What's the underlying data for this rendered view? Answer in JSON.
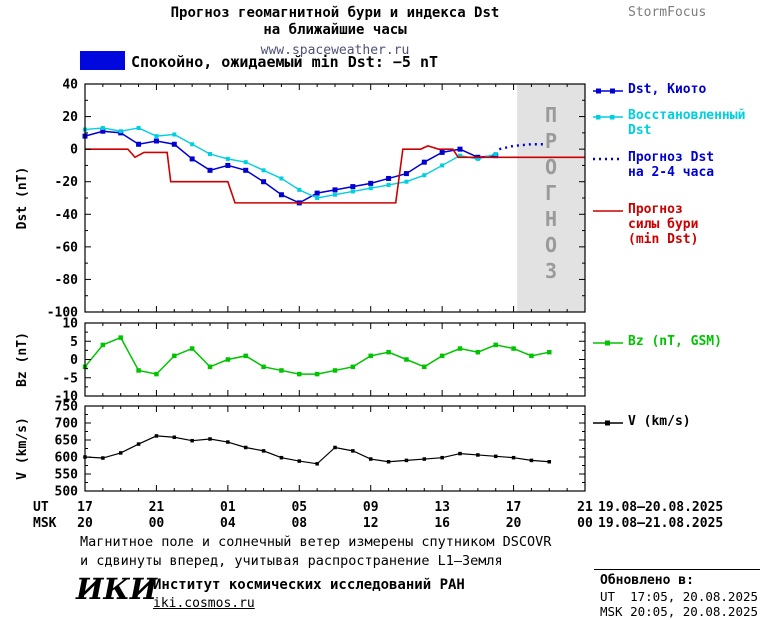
{
  "header": {
    "title_line1": "Прогноз геомагнитной бури и индекса Dst",
    "title_line2": "на ближайшие часы",
    "site": "www.spaceweather.ru",
    "brand": "StormFocus"
  },
  "status": {
    "label": "Спокойно, ожидаемый min Dst: −5 nT",
    "swatch_color": "#0008dd"
  },
  "axis": {
    "ut_label": "UT",
    "msk_label": "MSK",
    "tick_positions": [
      0,
      4,
      8,
      12,
      16,
      20,
      24,
      28
    ],
    "ut_ticks": [
      "17",
      "21",
      "01",
      "05",
      "09",
      "13",
      "17",
      "21"
    ],
    "msk_ticks": [
      "20",
      "00",
      "04",
      "08",
      "12",
      "16",
      "20",
      "00"
    ],
    "ut_range": "19.08–20.08.2025",
    "msk_range": "19.08–21.08.2025"
  },
  "legends": {
    "dst_kyoto": {
      "label": "Dst, Киото"
    },
    "dst_restored": {
      "line1": "Восстановленный",
      "line2": "Dst"
    },
    "dst_forecast": {
      "line1": "Прогноз Dst",
      "line2": "на 2-4 часа"
    },
    "storm_forecast": {
      "line1": "Прогноз",
      "line2": "силы бури",
      "line3": "(min Dst)"
    },
    "bz": {
      "label": "Bz (nT, GSM)"
    },
    "v": {
      "label": "V (km/s)"
    }
  },
  "footer": {
    "note_line1": "Магнитное поле и солнечный ветер измерены спутником DSCOVR",
    "note_line2": "и сдвинуты вперед, учитывая распространение L1—Земля",
    "logo": "ИКИ",
    "institute": "Институт космических исследований РАН",
    "site": "iki.cosmos.ru",
    "updated_label": "Обновлено в:",
    "updated_ut": "UT  17:05, 20.08.2025",
    "updated_msk": "MSK 20:05, 20.08.2025"
  },
  "chart_data": [
    {
      "type": "line",
      "panel": "dst",
      "ylabel": "Dst (nT)",
      "x_unit": "hours since 17:00 UT 19.08.2025",
      "xlim": [
        0,
        28
      ],
      "ylim": [
        -100,
        40
      ],
      "xtick_major": 4,
      "xtick_minor": 1,
      "ytick_major": 20,
      "ytick_minor": 10,
      "ytick_values": [
        40,
        20,
        0,
        -20,
        -40,
        -60,
        -80,
        -100
      ],
      "ytick_labels": [
        "40",
        "20",
        "0",
        "-20",
        "-40",
        "-60",
        "-80",
        "-100"
      ],
      "forecast_region": {
        "x0": 24.2,
        "x1": 28,
        "label": "ПРОГНОЗ",
        "fill": "#e2e2e2",
        "text_color": "#9a9a9a"
      },
      "series": [
        {
          "name": "Dst, Киото",
          "slug": "dst-kyoto",
          "color": "#0000d0",
          "marker": "square",
          "marker_size": 5,
          "width": 1.5,
          "x": [
            0,
            1,
            2,
            3,
            4,
            5,
            6,
            7,
            8,
            9,
            10,
            11,
            12,
            13,
            14,
            15,
            16,
            17,
            18,
            19,
            20,
            21,
            22,
            23
          ],
          "y": [
            8,
            11,
            10,
            3,
            5,
            3,
            -6,
            -13,
            -10,
            -13,
            -20,
            -28,
            -33,
            -27,
            -25,
            -23,
            -21,
            -18,
            -15,
            -8,
            -2,
            0,
            -5,
            -4
          ]
        },
        {
          "name": "Восстановленный Dst",
          "slug": "dst-restored",
          "color": "#00cfe0",
          "marker": "square",
          "marker_size": 4,
          "width": 1.4,
          "x": [
            0,
            1,
            2,
            3,
            4,
            5,
            6,
            7,
            8,
            9,
            10,
            11,
            12,
            13,
            14,
            15,
            16,
            17,
            18,
            19,
            20,
            21,
            22,
            23
          ],
          "y": [
            12,
            13,
            11,
            13,
            8,
            9,
            3,
            -3,
            -6,
            -8,
            -13,
            -18,
            -25,
            -30,
            -28,
            -26,
            -24,
            -22,
            -20,
            -16,
            -10,
            -4,
            -6,
            -3
          ]
        },
        {
          "name": "Прогноз Dst на 2-4 часа",
          "slug": "dst-forecast",
          "color": "#0000d0",
          "dash": "2,4",
          "width": 2.4,
          "x": [
            23.2,
            24,
            25,
            25.8
          ],
          "y": [
            0,
            2,
            3,
            3
          ]
        },
        {
          "name": "Прогноз силы бури (min Dst)",
          "slug": "storm-forecast",
          "color": "#cc0000",
          "width": 1.6,
          "x": [
            0,
            2.4,
            2.8,
            3.3,
            4.6,
            4.8,
            8,
            8.4,
            17.4,
            17.8,
            18.8,
            19.2,
            19.8,
            20.6,
            20.9,
            28
          ],
          "y": [
            0,
            0,
            -5,
            -2,
            -2,
            -20,
            -20,
            -33,
            -33,
            0,
            0,
            2,
            0,
            0,
            -5,
            -5
          ]
        }
      ]
    },
    {
      "type": "line",
      "panel": "bz",
      "ylabel": "Bz (nT)",
      "xlim": [
        0,
        28
      ],
      "ylim": [
        -10,
        10
      ],
      "xtick_major": 4,
      "xtick_minor": 1,
      "ytick_major": 5,
      "ytick_minor": 2.5,
      "ytick_values": [
        10,
        5,
        0,
        -5,
        -10
      ],
      "ytick_labels": [
        "10",
        "5",
        "0",
        "-5",
        "-10"
      ],
      "series": [
        {
          "name": "Bz (nT, GSM)",
          "slug": "bz",
          "color": "#00c400",
          "marker": "square",
          "marker_size": 4.5,
          "width": 1.5,
          "x": [
            0,
            1,
            2,
            3,
            4,
            5,
            6,
            7,
            8,
            9,
            10,
            11,
            12,
            13,
            14,
            15,
            16,
            17,
            18,
            19,
            20,
            21,
            22,
            23,
            24,
            25,
            26
          ],
          "y": [
            -2,
            4,
            6,
            -3,
            -4,
            1,
            3,
            -2,
            0,
            1,
            -2,
            -3,
            -4,
            -4,
            -3,
            -2,
            1,
            2,
            0,
            -2,
            1,
            3,
            2,
            4,
            3,
            1,
            2
          ]
        }
      ]
    },
    {
      "type": "line",
      "panel": "v",
      "ylabel": "V (km/s)",
      "xlim": [
        0,
        28
      ],
      "ylim": [
        500,
        750
      ],
      "xtick_major": 4,
      "xtick_minor": 1,
      "ytick_major": 50,
      "ytick_minor": 25,
      "ytick_values": [
        750,
        700,
        650,
        600,
        550,
        500
      ],
      "ytick_labels": [
        "750",
        "700",
        "650",
        "600",
        "550",
        "500"
      ],
      "series": [
        {
          "name": "V (km/s)",
          "slug": "v",
          "color": "#000000",
          "marker": "square",
          "marker_size": 3.5,
          "width": 1.2,
          "x": [
            0,
            1,
            2,
            3,
            4,
            5,
            6,
            7,
            8,
            9,
            10,
            11,
            12,
            13,
            14,
            15,
            16,
            17,
            18,
            19,
            20,
            21,
            22,
            23,
            24,
            25,
            26
          ],
          "y": [
            600,
            597,
            612,
            638,
            662,
            658,
            648,
            653,
            644,
            628,
            618,
            598,
            588,
            580,
            628,
            618,
            594,
            586,
            590,
            594,
            598,
            610,
            606,
            602,
            598,
            590,
            586
          ]
        }
      ]
    }
  ]
}
